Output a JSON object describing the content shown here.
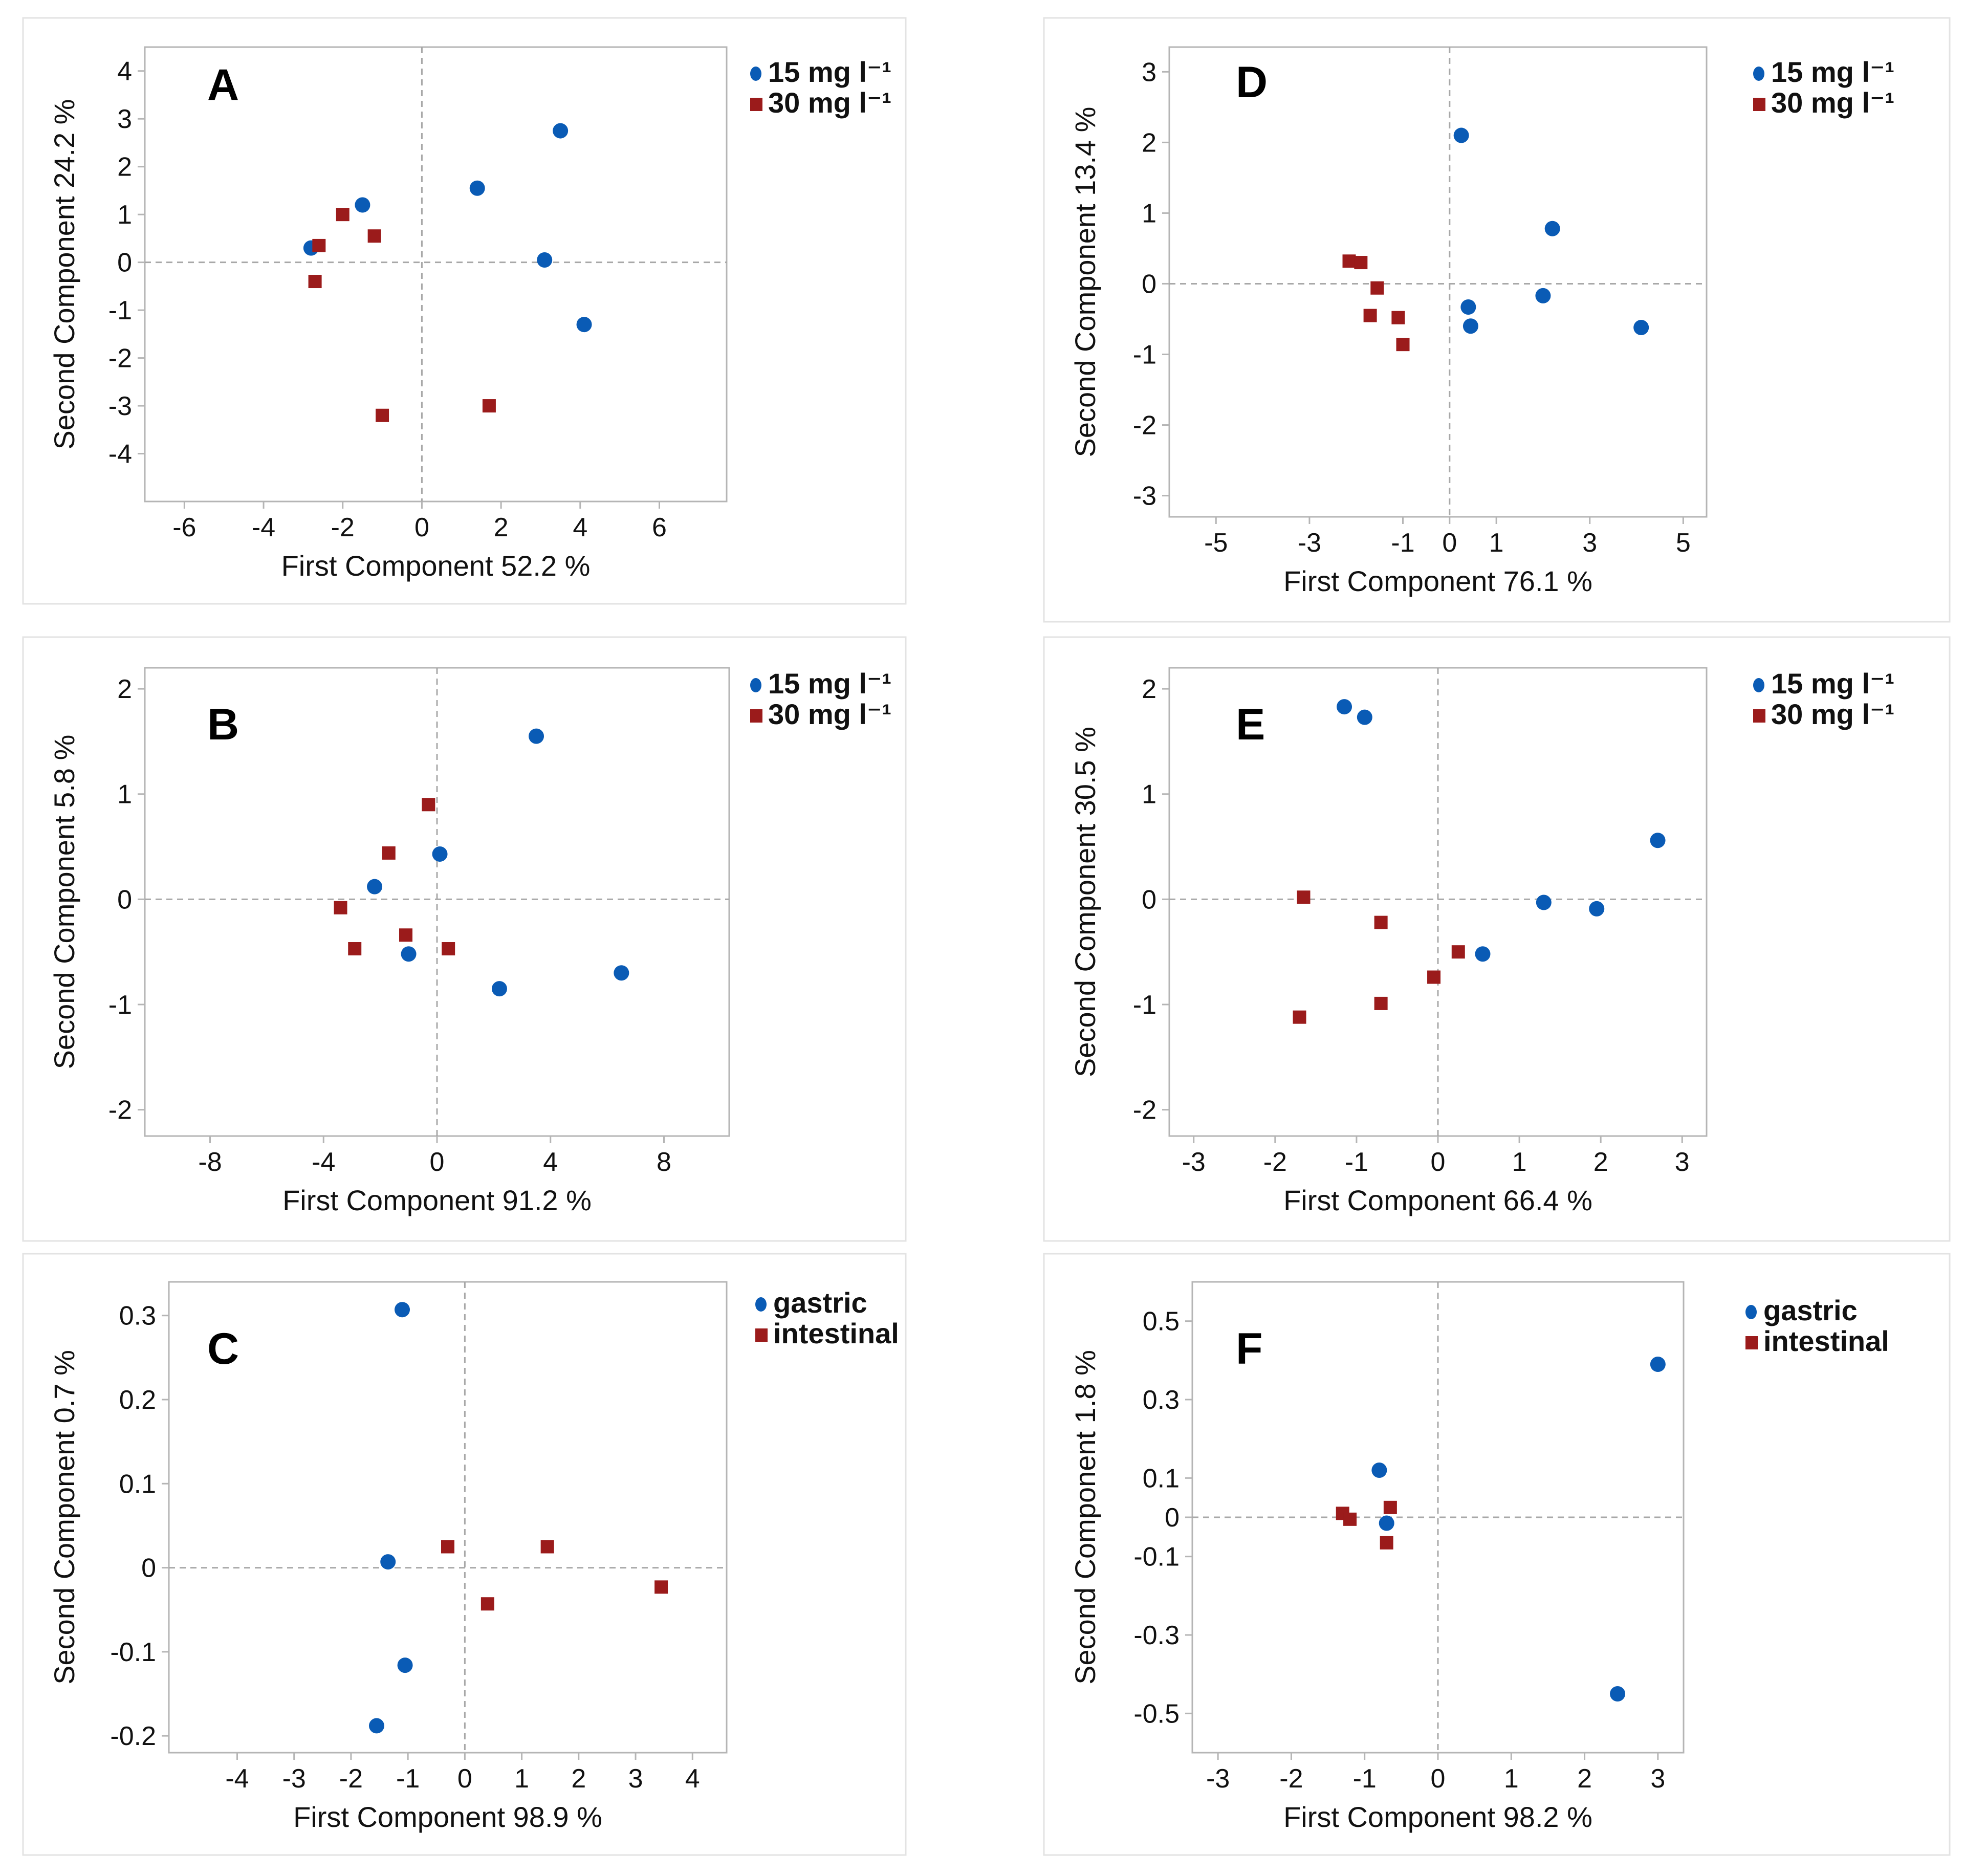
{
  "colors": {
    "series1": "#0a5bb5",
    "series2": "#9b1b1b",
    "panel_border": "#e3e3e3",
    "axis": "#b5b5b5",
    "text": "#111111",
    "reference_line": "#a8a8a8"
  },
  "chart_data": [
    {
      "panel": "A",
      "type": "scatter",
      "xlabel": "First Component  52.2 %",
      "ylabel": "Second Component  24.2 %",
      "xlim": [
        -7,
        7.7
      ],
      "ylim": [
        -5,
        4.5
      ],
      "xticks": [
        -6,
        -4,
        -2,
        0,
        2,
        4,
        6
      ],
      "xtick_labels": [
        "-6",
        "-4",
        "-2",
        "0",
        "2",
        "4",
        "6"
      ],
      "yticks": [
        4,
        3,
        2,
        1,
        0,
        -1,
        -2,
        -3,
        -4
      ],
      "ytick_labels": [
        "4",
        "3",
        "2",
        "1",
        "0",
        "-1",
        "-2",
        "-3",
        "-4"
      ],
      "reference_lines": {
        "x": 0,
        "y": 0
      },
      "legend_position": "outside-right-top",
      "series": [
        {
          "name": "15 mg l⁻¹",
          "marker": "circle",
          "x": [
            -2.8,
            -1.5,
            1.4,
            3.5,
            3.1,
            4.1
          ],
          "y": [
            0.3,
            1.2,
            1.55,
            2.75,
            0.05,
            -1.3
          ]
        },
        {
          "name": "30 mg l⁻¹",
          "marker": "square",
          "x": [
            -2.6,
            -2.0,
            -1.2,
            -2.7,
            -1.0,
            1.7
          ],
          "y": [
            0.35,
            1.0,
            0.55,
            -0.4,
            -3.2,
            -3.0
          ]
        }
      ]
    },
    {
      "panel": "B",
      "type": "scatter",
      "xlabel": "First Component  91.2 %",
      "ylabel": "Second Component  5.8 %",
      "xlim": [
        -10.3,
        10.3
      ],
      "ylim": [
        -2.25,
        2.2
      ],
      "xticks": [
        -8,
        -4,
        0,
        4,
        8
      ],
      "xtick_labels": [
        "-8",
        "-4",
        "0",
        "4",
        "8"
      ],
      "yticks": [
        2,
        1,
        0,
        -1,
        -2
      ],
      "ytick_labels": [
        "2",
        "1",
        "0",
        "-1",
        "-2"
      ],
      "reference_lines": {
        "x": 0,
        "y": 0
      },
      "legend_position": "outside-right-top",
      "series": [
        {
          "name": "15 mg l⁻¹",
          "marker": "circle",
          "x": [
            3.5,
            0.1,
            -2.2,
            -1.0,
            2.2,
            6.5
          ],
          "y": [
            1.55,
            0.43,
            0.12,
            -0.52,
            -0.85,
            -0.7
          ]
        },
        {
          "name": "30 mg l⁻¹",
          "marker": "square",
          "x": [
            -0.3,
            -1.7,
            -3.4,
            -1.1,
            -2.9,
            0.4
          ],
          "y": [
            0.9,
            0.44,
            -0.08,
            -0.34,
            -0.47,
            -0.47
          ]
        }
      ]
    },
    {
      "panel": "C",
      "type": "scatter",
      "xlabel": "First Component 98.9 %",
      "ylabel": "Second Component  0.7 %",
      "xlim": [
        -5.2,
        4.6
      ],
      "ylim": [
        -0.22,
        0.34
      ],
      "xticks": [
        -4,
        -3,
        -2,
        -1,
        0,
        1,
        2,
        3,
        4
      ],
      "xtick_labels": [
        "-4",
        "-3",
        "-2",
        "-1",
        "0",
        "1",
        "2",
        "3",
        "4"
      ],
      "yticks": [
        0.3,
        0.2,
        0.1,
        0,
        -0.1,
        -0.2
      ],
      "ytick_labels": [
        "0.3",
        "0.2",
        "0.1",
        "0",
        "-0.1",
        "-0.2"
      ],
      "reference_lines": {
        "x": 0,
        "y": 0
      },
      "legend_position": "outside-right-top",
      "series": [
        {
          "name": "gastric",
          "marker": "circle",
          "x": [
            -1.1,
            -1.35,
            -1.05,
            -1.55
          ],
          "y": [
            0.307,
            0.007,
            -0.116,
            -0.188
          ]
        },
        {
          "name": "intestinal",
          "marker": "square",
          "x": [
            -0.3,
            1.45,
            0.4,
            3.45
          ],
          "y": [
            0.025,
            0.025,
            -0.043,
            -0.023
          ]
        }
      ]
    },
    {
      "panel": "D",
      "type": "scatter",
      "xlabel": "First Component  76.1 %",
      "ylabel": "Second Component  13.4 %",
      "xlim": [
        -6.0,
        5.5
      ],
      "ylim": [
        -3.3,
        3.35
      ],
      "xticks": [
        -5,
        -3,
        -1,
        0,
        1,
        3,
        5
      ],
      "xtick_labels": [
        "-5",
        "-3",
        "-1",
        "0",
        "1",
        "3",
        "5"
      ],
      "yticks": [
        3,
        2,
        1,
        0,
        -1,
        -2,
        -3
      ],
      "ytick_labels": [
        "3",
        "2",
        "1",
        "0",
        "-1",
        "-2",
        "-3"
      ],
      "reference_lines": {
        "x": 0,
        "y": 0
      },
      "legend_position": "outside-right-top",
      "series": [
        {
          "name": "15 mg l⁻¹",
          "marker": "circle",
          "x": [
            0.25,
            2.2,
            0.4,
            0.45,
            2.0,
            4.1
          ],
          "y": [
            2.1,
            0.78,
            -0.33,
            -0.6,
            -0.17,
            -0.62
          ]
        },
        {
          "name": "30 mg l⁻¹",
          "marker": "square",
          "x": [
            -2.15,
            -1.9,
            -1.55,
            -1.7,
            -1.1,
            -1.0
          ],
          "y": [
            0.32,
            0.3,
            -0.06,
            -0.45,
            -0.48,
            -0.86
          ]
        }
      ]
    },
    {
      "panel": "E",
      "type": "scatter",
      "xlabel": "First Component  66.4 %",
      "ylabel": "Second Component  30.5 %",
      "xlim": [
        -3.3,
        3.3
      ],
      "ylim": [
        -2.25,
        2.2
      ],
      "xticks": [
        -3,
        -2,
        -1,
        0,
        1,
        2,
        3
      ],
      "xtick_labels": [
        "-3",
        "-2",
        "-1",
        "0",
        "1",
        "2",
        "3"
      ],
      "yticks": [
        2,
        1,
        0,
        -1,
        -2
      ],
      "ytick_labels": [
        "2",
        "1",
        "0",
        "-1",
        "-2"
      ],
      "reference_lines": {
        "x": 0,
        "y": 0
      },
      "legend_position": "outside-right-top",
      "series": [
        {
          "name": "15 mg l⁻¹",
          "marker": "circle",
          "x": [
            -1.15,
            -0.9,
            2.7,
            1.3,
            1.95,
            0.55
          ],
          "y": [
            1.83,
            1.73,
            0.56,
            -0.03,
            -0.09,
            -0.52
          ]
        },
        {
          "name": "30 mg l⁻¹",
          "marker": "square",
          "x": [
            -1.65,
            -0.7,
            0.25,
            -0.05,
            -0.7,
            -1.7
          ],
          "y": [
            0.02,
            -0.22,
            -0.5,
            -0.74,
            -0.99,
            -1.12
          ]
        }
      ]
    },
    {
      "panel": "F",
      "type": "scatter",
      "xlabel": "First Component  98.2 %",
      "ylabel": "Second Component  1.8 %",
      "xlim": [
        -3.35,
        3.35
      ],
      "ylim": [
        -0.6,
        0.6
      ],
      "xticks": [
        -3,
        -2,
        -1,
        0,
        1,
        2,
        3
      ],
      "xtick_labels": [
        "-3",
        "-2",
        "-1",
        "0",
        "1",
        "2",
        "3"
      ],
      "yticks": [
        0.5,
        0.3,
        0.1,
        0,
        -0.1,
        -0.3,
        -0.5
      ],
      "ytick_labels": [
        "0.5",
        "0.3",
        "0.1",
        "0",
        "-0.1",
        "-0.3",
        "-0.5"
      ],
      "reference_lines": {
        "x": 0,
        "y": 0
      },
      "legend_position": "outside-right-top",
      "series": [
        {
          "name": "gastric",
          "marker": "circle",
          "x": [
            3.0,
            -0.8,
            -0.7,
            2.45
          ],
          "y": [
            0.39,
            0.12,
            -0.015,
            -0.45
          ]
        },
        {
          "name": "intestinal",
          "marker": "square",
          "x": [
            -1.3,
            -1.2,
            -0.65,
            -0.7
          ],
          "y": [
            0.01,
            -0.005,
            0.025,
            -0.065
          ]
        }
      ]
    }
  ]
}
